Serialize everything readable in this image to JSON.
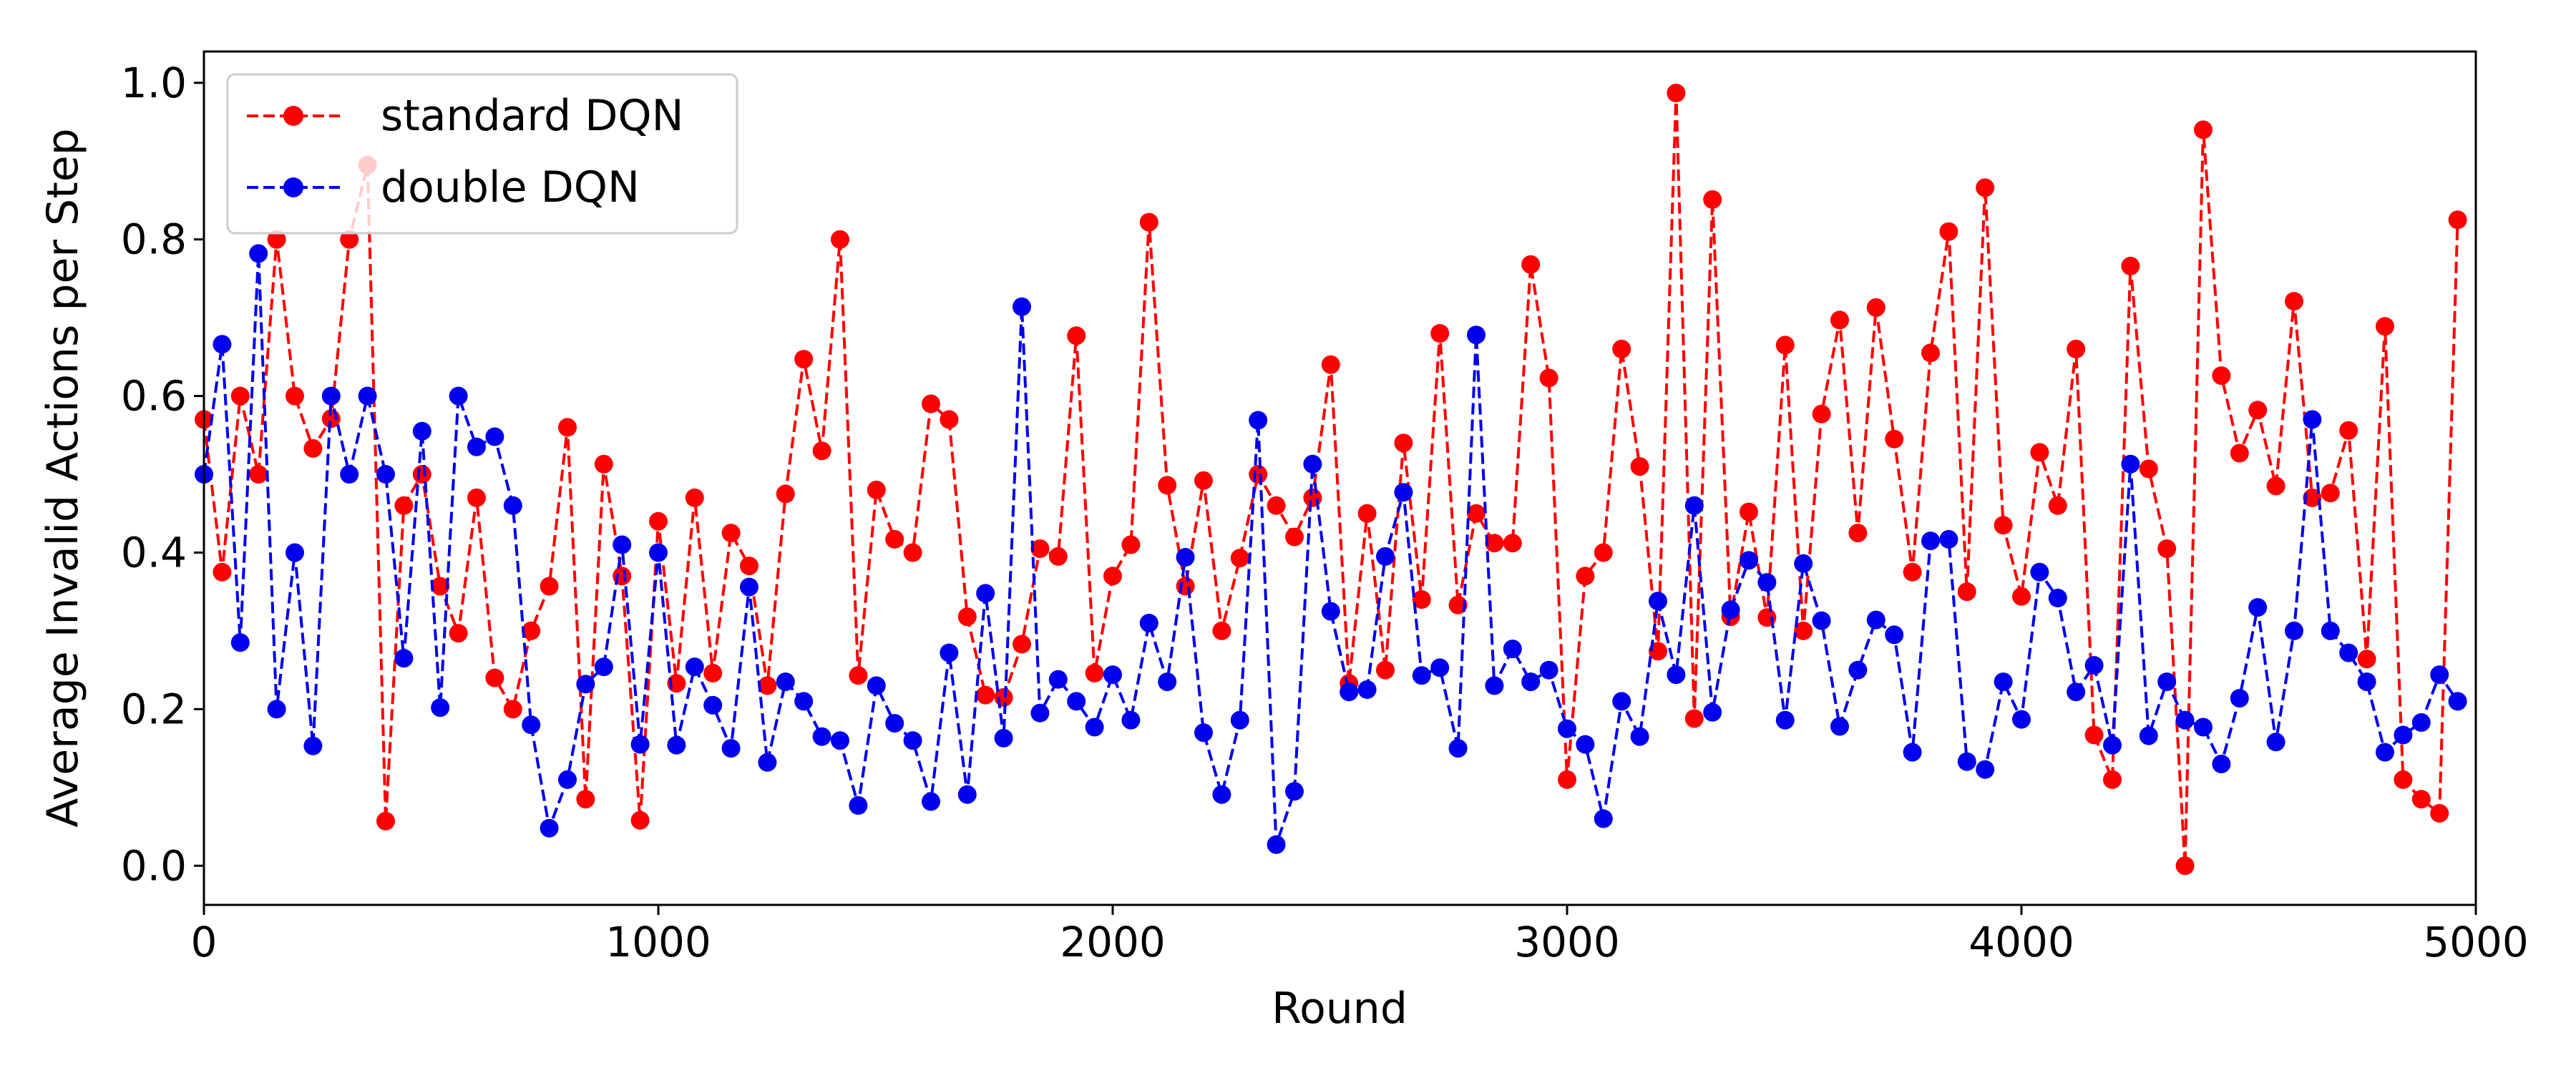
{
  "chart_data": {
    "type": "line",
    "xlabel": "Round",
    "ylabel": "Average Invalid Actions per Step",
    "xlim": [
      0,
      5000
    ],
    "ylim": [
      -0.05,
      1.04
    ],
    "xticks": [
      0,
      1000,
      2000,
      3000,
      4000,
      5000
    ],
    "xtick_labels": [
      "0",
      "1000",
      "2000",
      "3000",
      "4000",
      "5000"
    ],
    "yticks": [
      0.0,
      0.2,
      0.4,
      0.6,
      0.8,
      1.0
    ],
    "ytick_labels": [
      "0.0",
      "0.2",
      "0.4",
      "0.6",
      "0.8",
      "1.0"
    ],
    "grid": false,
    "legend_position": "top-left",
    "x": [
      0,
      40,
      80,
      120,
      160,
      200,
      240,
      280,
      320,
      360,
      400,
      440,
      480,
      520,
      560,
      600,
      640,
      680,
      720,
      760,
      800,
      840,
      880,
      920,
      960,
      1000,
      1040,
      1080,
      1120,
      1160,
      1200,
      1240,
      1280,
      1320,
      1360,
      1400,
      1440,
      1480,
      1520,
      1560,
      1600,
      1640,
      1680,
      1720,
      1760,
      1800,
      1840,
      1880,
      1920,
      1960,
      2000,
      2040,
      2080,
      2120,
      2160,
      2200,
      2240,
      2280,
      2320,
      2360,
      2400,
      2440,
      2480,
      2520,
      2560,
      2600,
      2640,
      2680,
      2720,
      2760,
      2800,
      2840,
      2880,
      2920,
      2960,
      3000,
      3040,
      3080,
      3120,
      3160,
      3200,
      3240,
      3280,
      3320,
      3360,
      3400,
      3440,
      3480,
      3520,
      3560,
      3600,
      3640,
      3680,
      3720,
      3760,
      3800,
      3840,
      3880,
      3920,
      3960,
      4000,
      4040,
      4080,
      4120,
      4160,
      4200,
      4240,
      4280,
      4320,
      4360,
      4400,
      4440,
      4480,
      4520,
      4560,
      4600,
      4640,
      4680,
      4720,
      4760,
      4800,
      4840,
      4880,
      4920,
      4960
    ],
    "series": [
      {
        "name": "standard DQN",
        "color": "#ff0000",
        "values": [
          0.57,
          0.375,
          0.6,
          0.5,
          0.8,
          0.6,
          0.533,
          0.571,
          0.8,
          0.895,
          0.057,
          0.46,
          0.5,
          0.357,
          0.297,
          0.47,
          0.24,
          0.2,
          0.3,
          0.357,
          0.56,
          0.085,
          0.513,
          0.37,
          0.058,
          0.44,
          0.233,
          0.47,
          0.246,
          0.425,
          0.383,
          0.23,
          0.475,
          0.647,
          0.53,
          0.8,
          0.243,
          0.48,
          0.417,
          0.4,
          0.59,
          0.57,
          0.318,
          0.218,
          0.215,
          0.283,
          0.405,
          0.395,
          0.677,
          0.246,
          0.37,
          0.41,
          0.822,
          0.486,
          0.357,
          0.492,
          0.3,
          0.393,
          0.5,
          0.46,
          0.42,
          0.47,
          0.64,
          0.233,
          0.45,
          0.25,
          0.54,
          0.34,
          0.68,
          0.333,
          0.45,
          0.412,
          0.412,
          0.768,
          0.623,
          0.11,
          0.37,
          0.4,
          0.66,
          0.51,
          0.274,
          0.987,
          0.188,
          0.851,
          0.318,
          0.452,
          0.317,
          0.665,
          0.3,
          0.577,
          0.697,
          0.425,
          0.713,
          0.545,
          0.375,
          0.655,
          0.81,
          0.35,
          0.866,
          0.435,
          0.344,
          0.528,
          0.46,
          0.66,
          0.167,
          0.11,
          0.766,
          0.507,
          0.405,
          0.0,
          0.94,
          0.626,
          0.527,
          0.582,
          0.485,
          0.721,
          0.47,
          0.476,
          0.556,
          0.264,
          0.689,
          0.11,
          0.085,
          0.067,
          0.825
        ]
      },
      {
        "name": "double DQN",
        "color": "#0000ee",
        "values": [
          0.5,
          0.666,
          0.285,
          0.782,
          0.2,
          0.4,
          0.153,
          0.6,
          0.5,
          0.6,
          0.5,
          0.265,
          0.555,
          0.202,
          0.6,
          0.535,
          0.548,
          0.46,
          0.18,
          0.048,
          0.11,
          0.232,
          0.254,
          0.41,
          0.155,
          0.4,
          0.154,
          0.254,
          0.205,
          0.15,
          0.356,
          0.132,
          0.235,
          0.21,
          0.165,
          0.16,
          0.077,
          0.23,
          0.182,
          0.16,
          0.082,
          0.272,
          0.091,
          0.348,
          0.163,
          0.714,
          0.195,
          0.238,
          0.21,
          0.177,
          0.244,
          0.186,
          0.31,
          0.235,
          0.394,
          0.17,
          0.091,
          0.186,
          0.569,
          0.027,
          0.095,
          0.513,
          0.325,
          0.222,
          0.225,
          0.395,
          0.477,
          0.243,
          0.253,
          0.15,
          0.678,
          0.23,
          0.277,
          0.235,
          0.25,
          0.175,
          0.155,
          0.06,
          0.21,
          0.165,
          0.338,
          0.244,
          0.46,
          0.196,
          0.327,
          0.39,
          0.362,
          0.186,
          0.386,
          0.313,
          0.178,
          0.25,
          0.314,
          0.295,
          0.145,
          0.415,
          0.417,
          0.133,
          0.123,
          0.235,
          0.187,
          0.375,
          0.342,
          0.222,
          0.256,
          0.154,
          0.513,
          0.166,
          0.235,
          0.186,
          0.177,
          0.13,
          0.214,
          0.33,
          0.158,
          0.3,
          0.57,
          0.3,
          0.272,
          0.235,
          0.145,
          0.167,
          0.183,
          0.244,
          0.21
        ]
      }
    ]
  }
}
